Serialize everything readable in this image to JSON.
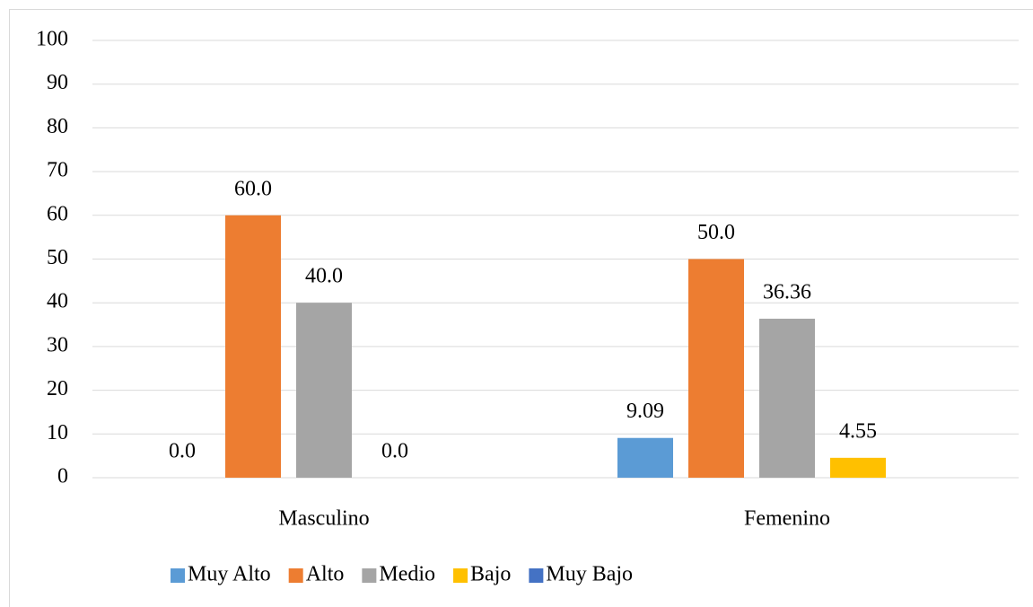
{
  "chart_data": {
    "type": "bar",
    "categories": [
      "Masculino",
      "Femenino"
    ],
    "series": [
      {
        "name": "Muy Alto",
        "color": "#5b9bd5",
        "values": [
          0,
          9.09
        ],
        "value_labels": [
          "0.0",
          "9.09"
        ]
      },
      {
        "name": "Alto",
        "color": "#ed7d31",
        "values": [
          60,
          50
        ],
        "value_labels": [
          "60.0",
          "50.0"
        ]
      },
      {
        "name": "Medio",
        "color": "#a5a5a5",
        "values": [
          40,
          36.36
        ],
        "value_labels": [
          "40.0",
          "36.36"
        ]
      },
      {
        "name": "Bajo",
        "color": "#ffc000",
        "values": [
          0,
          4.55
        ],
        "value_labels": [
          "0.0",
          "4.55"
        ]
      },
      {
        "name": "Muy Bajo",
        "color": "#4472c4",
        "values": [
          null,
          null
        ]
      }
    ],
    "ylim": [
      0,
      100
    ],
    "yticks": [
      0,
      10,
      20,
      30,
      40,
      50,
      60,
      70,
      80,
      90,
      100
    ],
    "grid": true,
    "legend": "bottom"
  }
}
